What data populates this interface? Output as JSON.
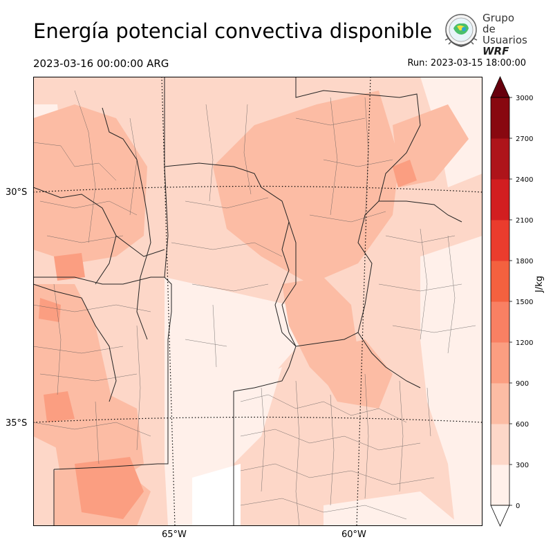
{
  "header": {
    "title": "Energía potencial convectiva disponible",
    "valid_time": "2023-03-16 00:00:00 ARG",
    "run_time": "Run: 2023-03-15 18:00:00"
  },
  "logo": {
    "line1": "Grupo de",
    "line2": "Usuarios",
    "line3": "WRF"
  },
  "map": {
    "lat_labels": [
      "30°S",
      "35°S"
    ],
    "lon_labels": [
      "65°W",
      "60°W"
    ]
  },
  "colorbar": {
    "label": "J/kg",
    "ticks": [
      "0",
      "300",
      "600",
      "900",
      "1200",
      "1500",
      "1800",
      "2100",
      "2400",
      "2700",
      "3000"
    ],
    "colors": [
      "#fff0ea",
      "#fdd7c8",
      "#fcbca4",
      "#fb9e81",
      "#f98063",
      "#f4613f",
      "#ea3c2d",
      "#d21e20",
      "#ae141a",
      "#880810",
      "#67000d"
    ],
    "extend": "both"
  }
}
